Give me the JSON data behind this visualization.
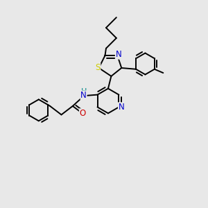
{
  "bg_color": "#e8e8e8",
  "atom_colors": {
    "C": "#000000",
    "N": "#0000cc",
    "O": "#cc0000",
    "S": "#cccc00",
    "H": "#008888"
  },
  "bond_color": "#000000",
  "bond_width": 1.4,
  "fig_size": [
    3.0,
    3.0
  ],
  "dpi": 100
}
